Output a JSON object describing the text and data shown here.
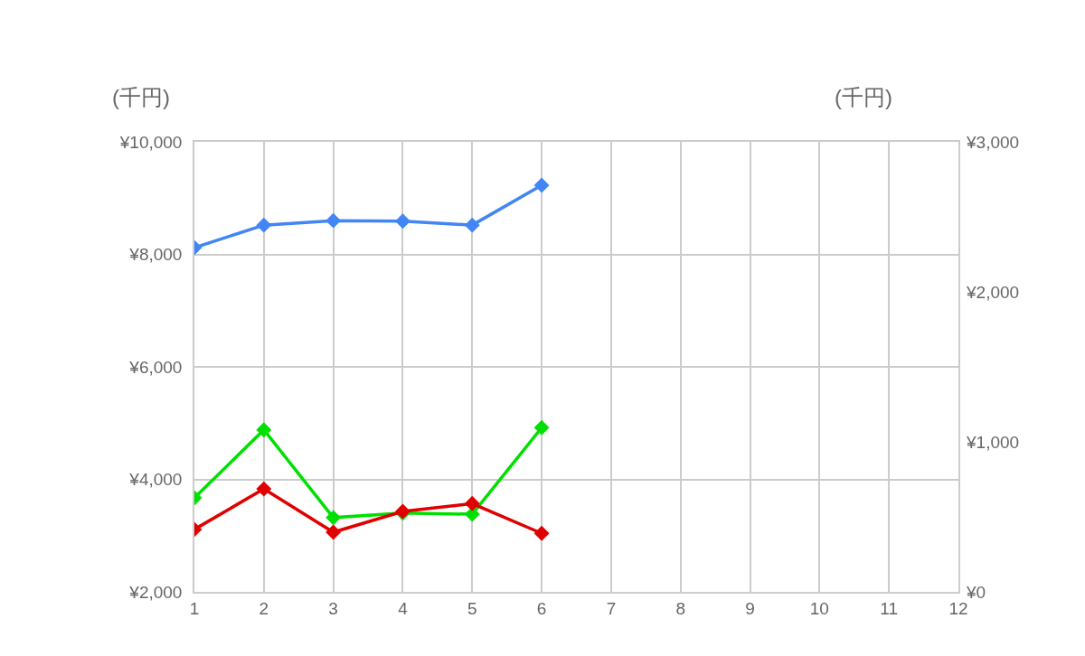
{
  "chart_data": {
    "type": "line",
    "ylabel": "(千円)",
    "y2label": "(千円)",
    "x": [
      1,
      2,
      3,
      4,
      5,
      6
    ],
    "series": [
      {
        "color": "#4285f4",
        "values": [
          8120,
          8520,
          8600,
          8590,
          8520,
          9230
        ]
      },
      {
        "color": "#00e000",
        "values": [
          3670,
          4880,
          3320,
          3400,
          3380,
          4920
        ]
      },
      {
        "color": "#e00000",
        "values": [
          3110,
          3830,
          3060,
          3430,
          3570,
          3040
        ]
      }
    ],
    "xlim": [
      1,
      12
    ],
    "xticks": [
      1,
      2,
      3,
      4,
      5,
      6,
      7,
      8,
      9,
      10,
      11,
      12
    ],
    "ylim": [
      2000,
      10000
    ],
    "yticks": [
      {
        "value": 2000,
        "label": "¥2,000"
      },
      {
        "value": 4000,
        "label": "¥4,000"
      },
      {
        "value": 6000,
        "label": "¥6,000"
      },
      {
        "value": 8000,
        "label": "¥8,000"
      },
      {
        "value": 10000,
        "label": "¥10,000"
      }
    ],
    "y2lim": [
      0,
      3000
    ],
    "y2ticks": [
      {
        "value": 0,
        "label": "¥0"
      },
      {
        "value": 1000,
        "label": "¥1,000"
      },
      {
        "value": 2000,
        "label": "¥2,000"
      },
      {
        "value": 3000,
        "label": "¥3,000"
      }
    ],
    "grid": true,
    "marker": "diamond",
    "line_style": "solid"
  }
}
